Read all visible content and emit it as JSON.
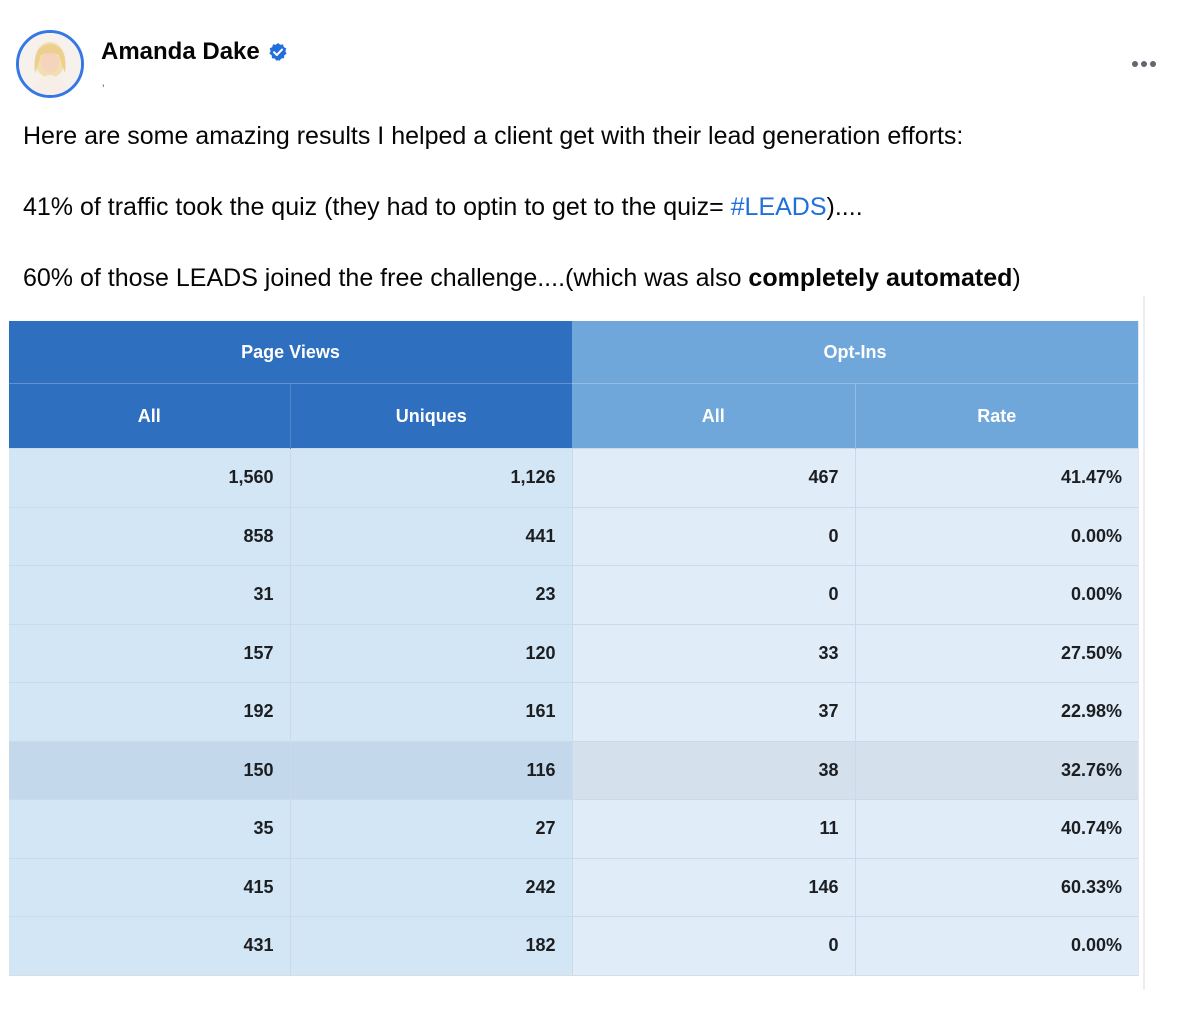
{
  "post": {
    "author": "Amanda Dake",
    "sub_mark": "’",
    "verified": true,
    "paragraphs": {
      "p1": "Here are some amazing results I helped a client get with their lead generation efforts:",
      "p2_before": "41% of traffic took the quiz (they had to optin to get to the quiz= ",
      "p2_hashtag": "#LEADS",
      "p2_after": ")....",
      "p3_before": "60% of those LEADS joined the free challenge....(which was also ",
      "p3_bold": "completely automated",
      "p3_after": ")"
    },
    "accent_color": "#216fdb",
    "icons": {
      "verified": "verified-badge-icon",
      "more": "more-options-icon"
    }
  },
  "table": {
    "groups": [
      "Page Views",
      "Opt-Ins"
    ],
    "columns": [
      "All",
      "Uniques",
      "All",
      "Rate"
    ],
    "rows": [
      [
        "1,560",
        "1,126",
        "467",
        "41.47%"
      ],
      [
        "858",
        "441",
        "0",
        "0.00%"
      ],
      [
        "31",
        "23",
        "0",
        "0.00%"
      ],
      [
        "157",
        "120",
        "33",
        "27.50%"
      ],
      [
        "192",
        "161",
        "37",
        "22.98%"
      ],
      [
        "150",
        "116",
        "38",
        "32.76%"
      ],
      [
        "35",
        "27",
        "11",
        "40.74%"
      ],
      [
        "415",
        "242",
        "146",
        "60.33%"
      ],
      [
        "431",
        "182",
        "0",
        "0.00%"
      ]
    ],
    "highlighted_row": 5,
    "colors": {
      "page_views_header": "#2f6fbf",
      "opt_ins_header": "#6fa7db"
    }
  }
}
